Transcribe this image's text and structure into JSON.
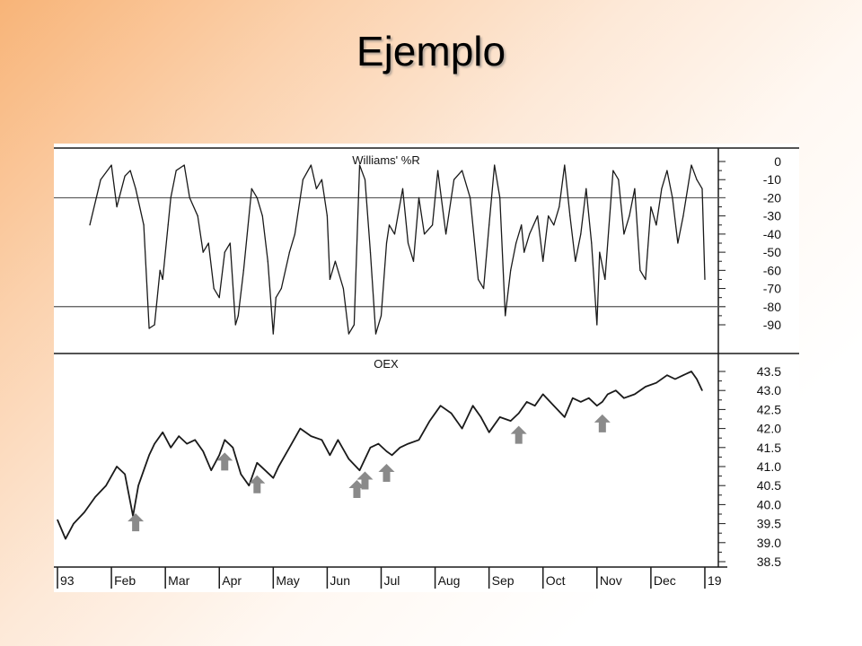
{
  "slide": {
    "title": "Ejemplo"
  },
  "colors": {
    "line": "#1a1a1a",
    "arrow": "#8a8a8a",
    "grid": "#555555",
    "panel_bg": "#ffffff"
  },
  "chart_data": [
    {
      "type": "line",
      "title": "Williams' %R",
      "ylim": [
        -100,
        0
      ],
      "yticks": [
        "0",
        "-10",
        "-20",
        "-30",
        "-40",
        "-50",
        "-60",
        "-70",
        "-80",
        "-90"
      ],
      "reference_lines": [
        -20,
        -80
      ],
      "x_months": [
        "93",
        "Feb",
        "Mar",
        "Apr",
        "May",
        "Jun",
        "Jul",
        "Aug",
        "Sep",
        "Oct",
        "Nov",
        "Dec",
        "19"
      ],
      "series": [
        {
          "x": [
            0.6,
            0.8,
            1.0,
            1.1,
            1.25,
            1.35,
            1.45,
            1.6,
            1.7,
            1.8,
            1.9,
            1.95,
            2.05,
            2.1,
            2.2,
            2.35,
            2.45,
            2.6,
            2.7,
            2.8,
            2.9,
            3.0,
            3.1,
            3.2,
            3.3,
            3.35,
            3.45,
            3.6,
            3.7,
            3.8,
            3.9,
            4.0,
            4.05,
            4.15,
            4.3,
            4.4,
            4.55,
            4.7,
            4.8,
            4.9,
            5.0,
            5.05,
            5.15,
            5.3,
            5.4,
            5.5,
            5.6,
            5.7,
            5.8,
            5.9,
            6.0,
            6.1,
            6.15,
            6.25,
            6.4,
            6.5,
            6.6,
            6.7,
            6.8,
            6.95,
            7.05,
            7.2,
            7.35,
            7.5,
            7.65,
            7.8,
            7.9,
            8.0,
            8.1,
            8.2,
            8.3,
            8.4,
            8.5,
            8.6,
            8.65,
            8.75,
            8.9,
            9.0,
            9.1,
            9.2,
            9.3,
            9.4,
            9.5,
            9.6,
            9.7,
            9.8,
            9.9,
            10.0,
            10.05,
            10.15,
            10.3,
            10.4,
            10.5,
            10.6,
            10.7,
            10.8,
            10.9,
            11.0,
            11.1,
            11.2,
            11.3,
            11.4,
            11.5,
            11.6,
            11.75,
            11.85,
            11.95,
            12.0
          ],
          "values": [
            -35,
            -10,
            -2,
            -25,
            -8,
            -5,
            -15,
            -35,
            -92,
            -90,
            -60,
            -65,
            -35,
            -20,
            -5,
            -2,
            -20,
            -30,
            -50,
            -45,
            -70,
            -75,
            -50,
            -45,
            -90,
            -85,
            -60,
            -15,
            -20,
            -30,
            -55,
            -95,
            -75,
            -70,
            -50,
            -40,
            -10,
            -2,
            -15,
            -10,
            -30,
            -65,
            -55,
            -70,
            -95,
            -90,
            -2,
            -10,
            -50,
            -95,
            -85,
            -45,
            -35,
            -40,
            -15,
            -45,
            -55,
            -20,
            -40,
            -35,
            -5,
            -40,
            -10,
            -5,
            -20,
            -65,
            -70,
            -35,
            -2,
            -20,
            -85,
            -60,
            -45,
            -35,
            -50,
            -40,
            -30,
            -55,
            -30,
            -35,
            -25,
            -2,
            -30,
            -55,
            -40,
            -15,
            -45,
            -90,
            -50,
            -65,
            -5,
            -10,
            -40,
            -30,
            -15,
            -60,
            -65,
            -25,
            -35,
            -15,
            -5,
            -20,
            -45,
            -30,
            -2,
            -10,
            -15,
            -65
          ]
        }
      ]
    },
    {
      "type": "line",
      "title": "OEX",
      "ylim": [
        38.5,
        43.5
      ],
      "yticks": [
        "43.5",
        "43.0",
        "42.5",
        "42.0",
        "41.5",
        "41.0",
        "40.5",
        "40.0",
        "39.5",
        "39.0",
        "38.5"
      ],
      "x_months": [
        "93",
        "Feb",
        "Mar",
        "Apr",
        "May",
        "Jun",
        "Jul",
        "Aug",
        "Sep",
        "Oct",
        "Nov",
        "Dec",
        "19"
      ],
      "series": [
        {
          "x": [
            0.0,
            0.15,
            0.3,
            0.5,
            0.7,
            0.9,
            1.1,
            1.25,
            1.4,
            1.5,
            1.6,
            1.7,
            1.8,
            1.95,
            2.1,
            2.25,
            2.4,
            2.55,
            2.7,
            2.85,
            3.0,
            3.1,
            3.25,
            3.4,
            3.55,
            3.7,
            3.85,
            4.0,
            4.1,
            4.3,
            4.5,
            4.7,
            4.9,
            5.05,
            5.2,
            5.4,
            5.6,
            5.8,
            5.95,
            6.1,
            6.2,
            6.35,
            6.5,
            6.7,
            6.9,
            7.1,
            7.3,
            7.5,
            7.7,
            7.85,
            8.0,
            8.2,
            8.4,
            8.55,
            8.7,
            8.85,
            9.0,
            9.2,
            9.4,
            9.55,
            9.7,
            9.85,
            10.0,
            10.1,
            10.2,
            10.35,
            10.5,
            10.7,
            10.9,
            11.1,
            11.3,
            11.45,
            11.6,
            11.75,
            11.85,
            11.95
          ],
          "values": [
            39.6,
            39.1,
            39.5,
            39.8,
            40.2,
            40.5,
            41.0,
            40.8,
            39.7,
            40.5,
            40.9,
            41.3,
            41.6,
            41.9,
            41.5,
            41.8,
            41.6,
            41.7,
            41.4,
            40.9,
            41.3,
            41.7,
            41.5,
            40.8,
            40.5,
            41.1,
            40.9,
            40.7,
            41.0,
            41.5,
            42.0,
            41.8,
            41.7,
            41.3,
            41.7,
            41.2,
            40.9,
            41.5,
            41.6,
            41.4,
            41.3,
            41.5,
            41.6,
            41.7,
            42.2,
            42.6,
            42.4,
            42.0,
            42.6,
            42.3,
            41.9,
            42.3,
            42.2,
            42.4,
            42.7,
            42.6,
            42.9,
            42.6,
            42.3,
            42.8,
            42.7,
            42.8,
            42.6,
            42.7,
            42.9,
            43.0,
            42.8,
            42.9,
            43.1,
            43.2,
            43.4,
            43.3,
            43.4,
            43.5,
            43.3,
            43.0
          ]
        }
      ],
      "annotations": {
        "type": "arrow-up",
        "x": [
          1.45,
          3.1,
          3.7,
          5.55,
          5.7,
          6.1,
          8.55,
          10.1
        ]
      }
    }
  ]
}
